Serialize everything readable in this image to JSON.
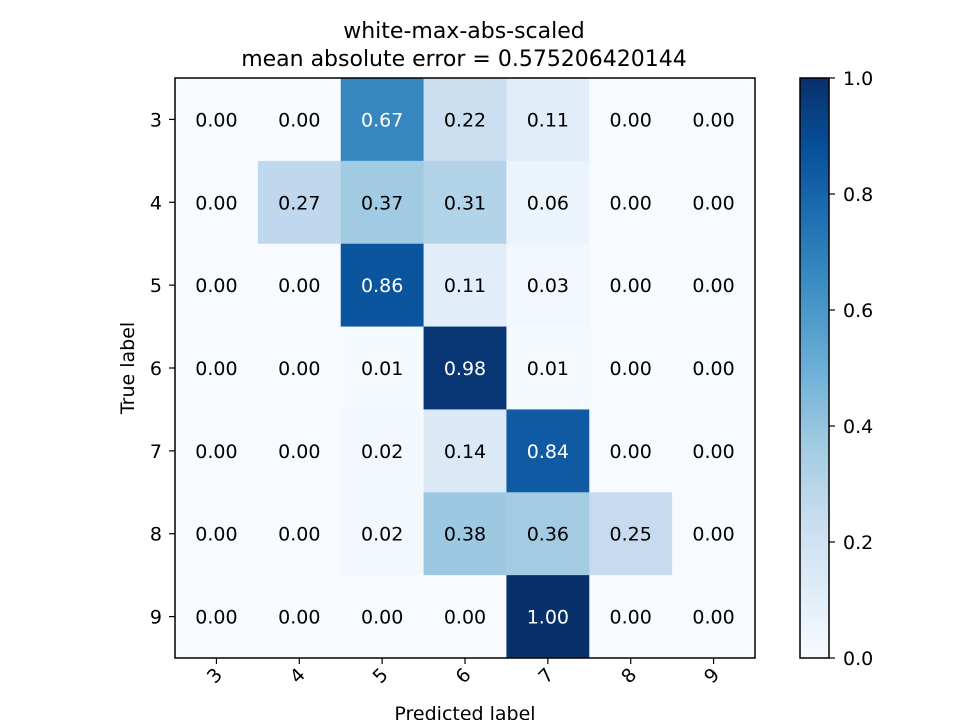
{
  "chart_data": {
    "type": "heatmap",
    "title": [
      "white-max-abs-scaled",
      "mean absolute error = 0.575206420144"
    ],
    "xlabel": "Predicted label",
    "ylabel": "True label",
    "x_categories": [
      "3",
      "4",
      "5",
      "6",
      "7",
      "8",
      "9"
    ],
    "y_categories": [
      "3",
      "4",
      "5",
      "6",
      "7",
      "8",
      "9"
    ],
    "values": [
      [
        0.0,
        0.0,
        0.67,
        0.22,
        0.11,
        0.0,
        0.0
      ],
      [
        0.0,
        0.27,
        0.37,
        0.31,
        0.06,
        0.0,
        0.0
      ],
      [
        0.0,
        0.0,
        0.86,
        0.11,
        0.03,
        0.0,
        0.0
      ],
      [
        0.0,
        0.0,
        0.01,
        0.98,
        0.01,
        0.0,
        0.0
      ],
      [
        0.0,
        0.0,
        0.02,
        0.14,
        0.84,
        0.0,
        0.0
      ],
      [
        0.0,
        0.0,
        0.02,
        0.38,
        0.36,
        0.25,
        0.0
      ],
      [
        0.0,
        0.0,
        0.0,
        0.0,
        1.0,
        0.0,
        0.0
      ]
    ],
    "value_format": "0.00",
    "colormap": "Blues",
    "colorbar": {
      "range": [
        0.0,
        1.0
      ],
      "ticks": [
        "0.0",
        "0.2",
        "0.4",
        "0.6",
        "0.8",
        "1.0"
      ]
    },
    "xtick_rotation_deg": 45
  }
}
